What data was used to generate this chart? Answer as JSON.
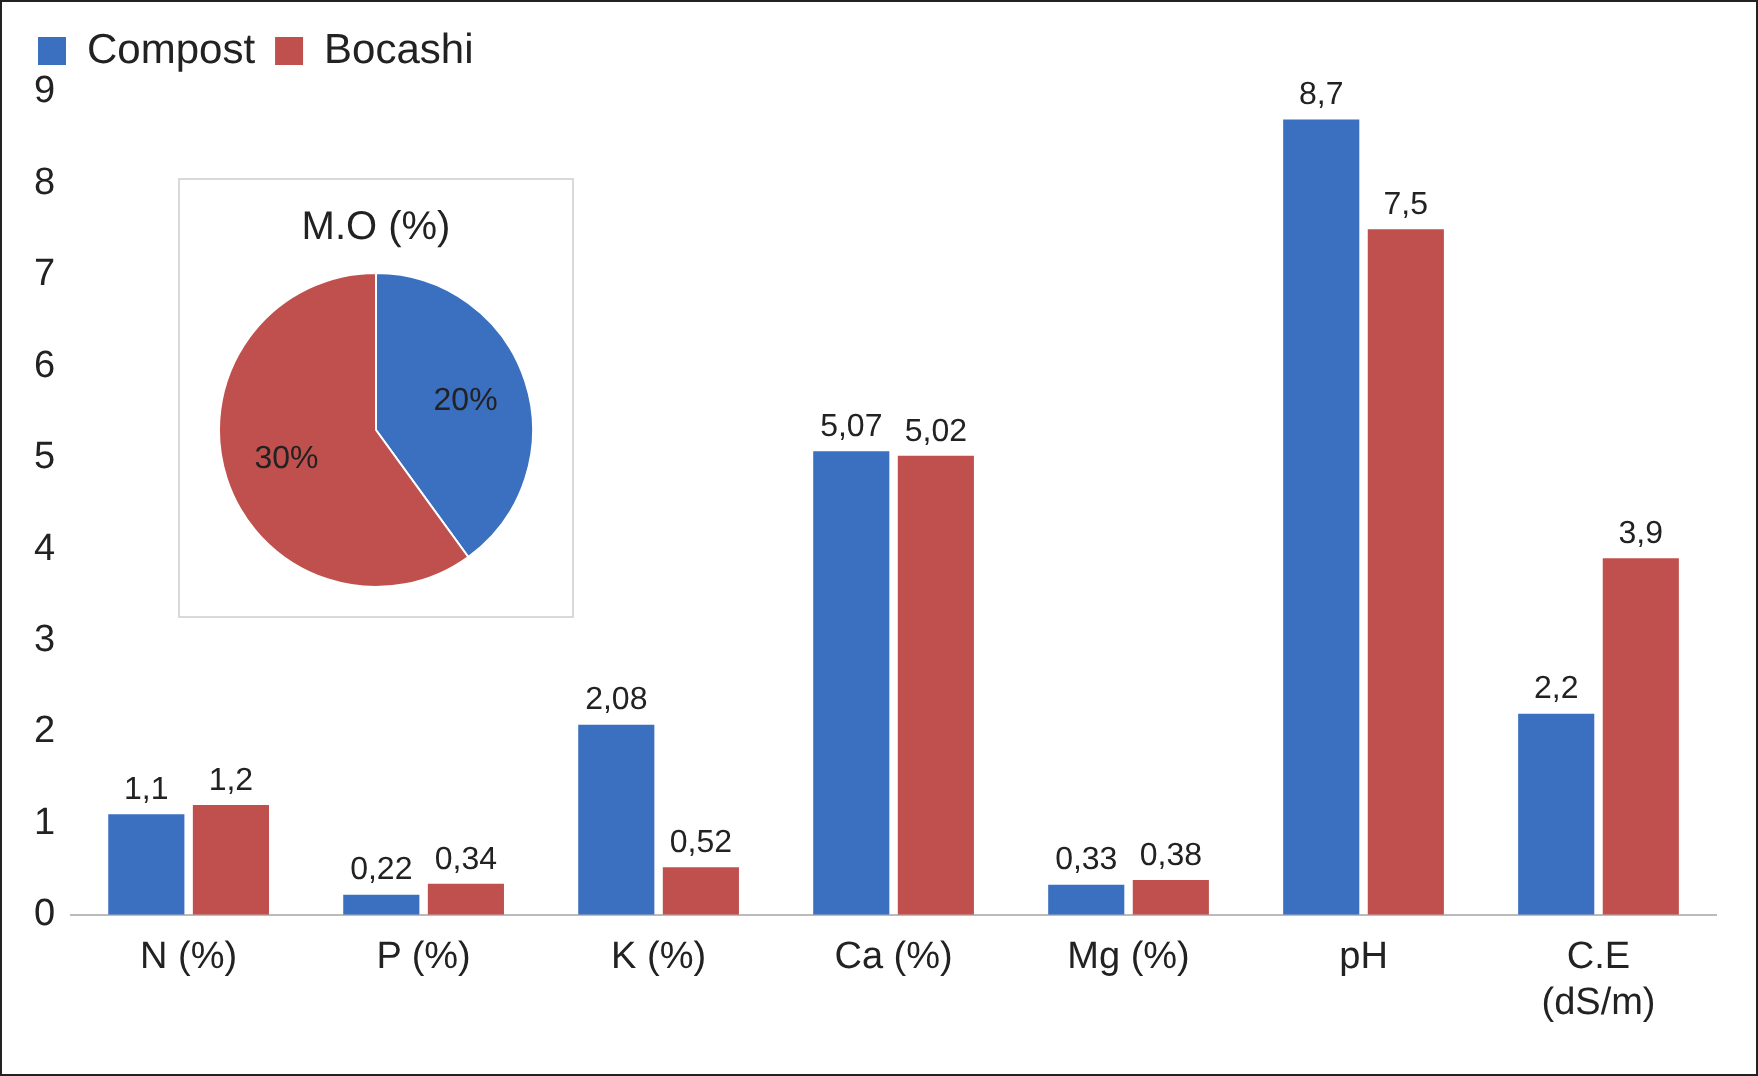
{
  "chart_data": [
    {
      "type": "bar",
      "categories": [
        "N (%)",
        "P (%)",
        "K (%)",
        "Ca (%)",
        "Mg (%)",
        "pH",
        "C.E (dS/m)"
      ],
      "series": [
        {
          "name": "Compost",
          "color": "#3b6fc0",
          "values": [
            1.1,
            0.22,
            2.08,
            5.07,
            0.33,
            8.7,
            2.2
          ],
          "value_labels": [
            "1,1",
            "0,22",
            "2,08",
            "5,07",
            "0,33",
            "8,7",
            "2,2"
          ]
        },
        {
          "name": "Bocashi",
          "color": "#c0504d",
          "values": [
            1.2,
            0.34,
            0.52,
            5.02,
            0.38,
            7.5,
            3.9
          ],
          "value_labels": [
            "1,2",
            "0,34",
            "0,52",
            "5,02",
            "0,38",
            "7,5",
            "3,9"
          ]
        }
      ],
      "ylim": [
        0,
        9
      ],
      "yticks": [
        0,
        1,
        2,
        3,
        4,
        5,
        6,
        7,
        8,
        9
      ],
      "grid": false,
      "legend": "top left"
    },
    {
      "type": "pie",
      "title": "M.O (%)",
      "categories": [
        null,
        null
      ],
      "values": [
        20,
        30
      ],
      "colors": [
        "#3b6fc0",
        "#c0504d"
      ],
      "value_labels": [
        "20%",
        "30%"
      ]
    }
  ]
}
